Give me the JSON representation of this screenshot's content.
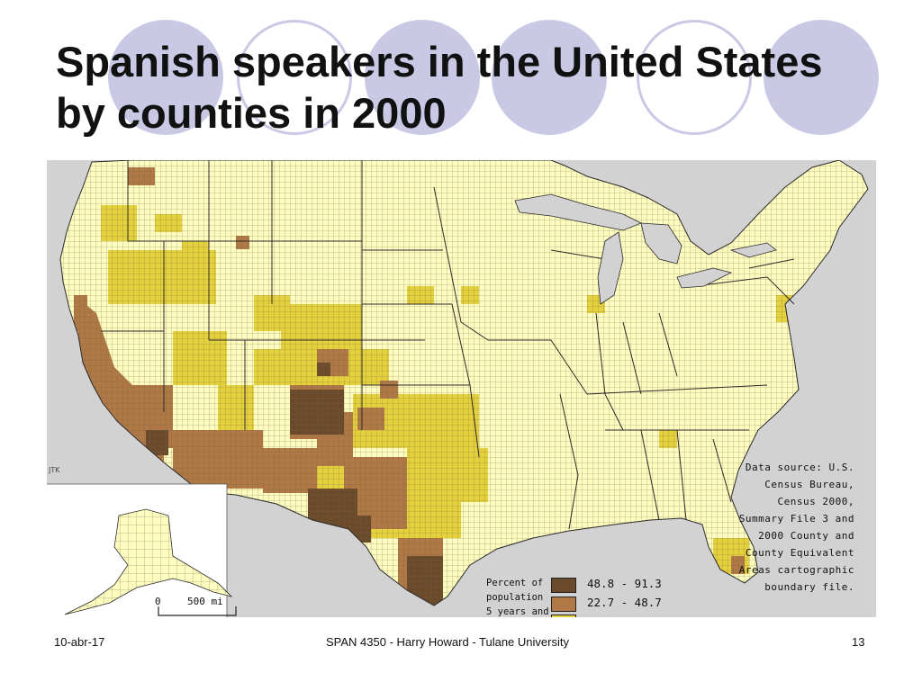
{
  "slide": {
    "title": "Spanish speakers in the United States by counties in 2000",
    "footer_left": "10-abr-17",
    "footer_center": "SPAN 4350 - Harry Howard - Tulane University",
    "footer_right": "13"
  },
  "map": {
    "credit": "JTK",
    "data_source": [
      "Data source: U.S.",
      "Census Bureau,",
      "Census 2000,",
      "Summary File 3 and",
      "2000 County and",
      "County Equivalent",
      "Areas cartographic",
      "boundary file."
    ],
    "legend": {
      "label_lines": [
        "Percent of",
        "population",
        "5 years and"
      ],
      "items": [
        {
          "range": "48.8 - 91.3",
          "color": "#6b4a2b"
        },
        {
          "range": "22.7 - 48.7",
          "color": "#b07844"
        }
      ]
    },
    "scale": {
      "start": "0",
      "end": "500 mi"
    },
    "colors": {
      "low": "#fffcc0",
      "mid": "#e5d13c",
      "high": "#b07844",
      "highest": "#6b4a2b",
      "background": "#d2d2d2"
    }
  }
}
